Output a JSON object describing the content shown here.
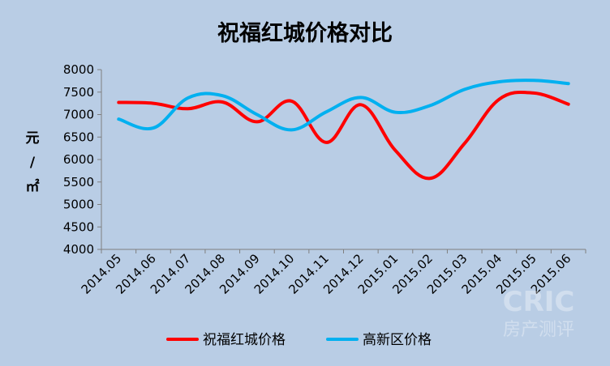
{
  "chart_data": {
    "type": "line",
    "title": "祝福红城价格对比",
    "ylabel": [
      "元",
      "/",
      "㎡"
    ],
    "xlabel": "",
    "categories": [
      "2014.05",
      "2014.06",
      "2014.07",
      "2014.08",
      "2014.09",
      "2014.10",
      "2014.11",
      "2014.12",
      "2015.01",
      "2015.02",
      "2015.03",
      "2015.04",
      "2015.05",
      "2015.06"
    ],
    "ylim": [
      4000,
      8000
    ],
    "yticks": [
      4000,
      4500,
      5000,
      5500,
      6000,
      6500,
      7000,
      7500,
      8000
    ],
    "grid": false,
    "legend_position": "bottom",
    "series": [
      {
        "name": "祝福红城价格",
        "color": "#ff0000",
        "values": [
          7270,
          7250,
          7130,
          7280,
          6840,
          7300,
          6380,
          7220,
          6200,
          5580,
          6360,
          7340,
          7480,
          7230
        ]
      },
      {
        "name": "高新区价格",
        "color": "#00b0f0",
        "values": [
          6900,
          6700,
          7370,
          7420,
          7000,
          6660,
          7060,
          7380,
          7050,
          7200,
          7560,
          7730,
          7760,
          7690
        ]
      }
    ]
  },
  "watermark": {
    "main": "CRIC",
    "sub": "房产测评"
  }
}
